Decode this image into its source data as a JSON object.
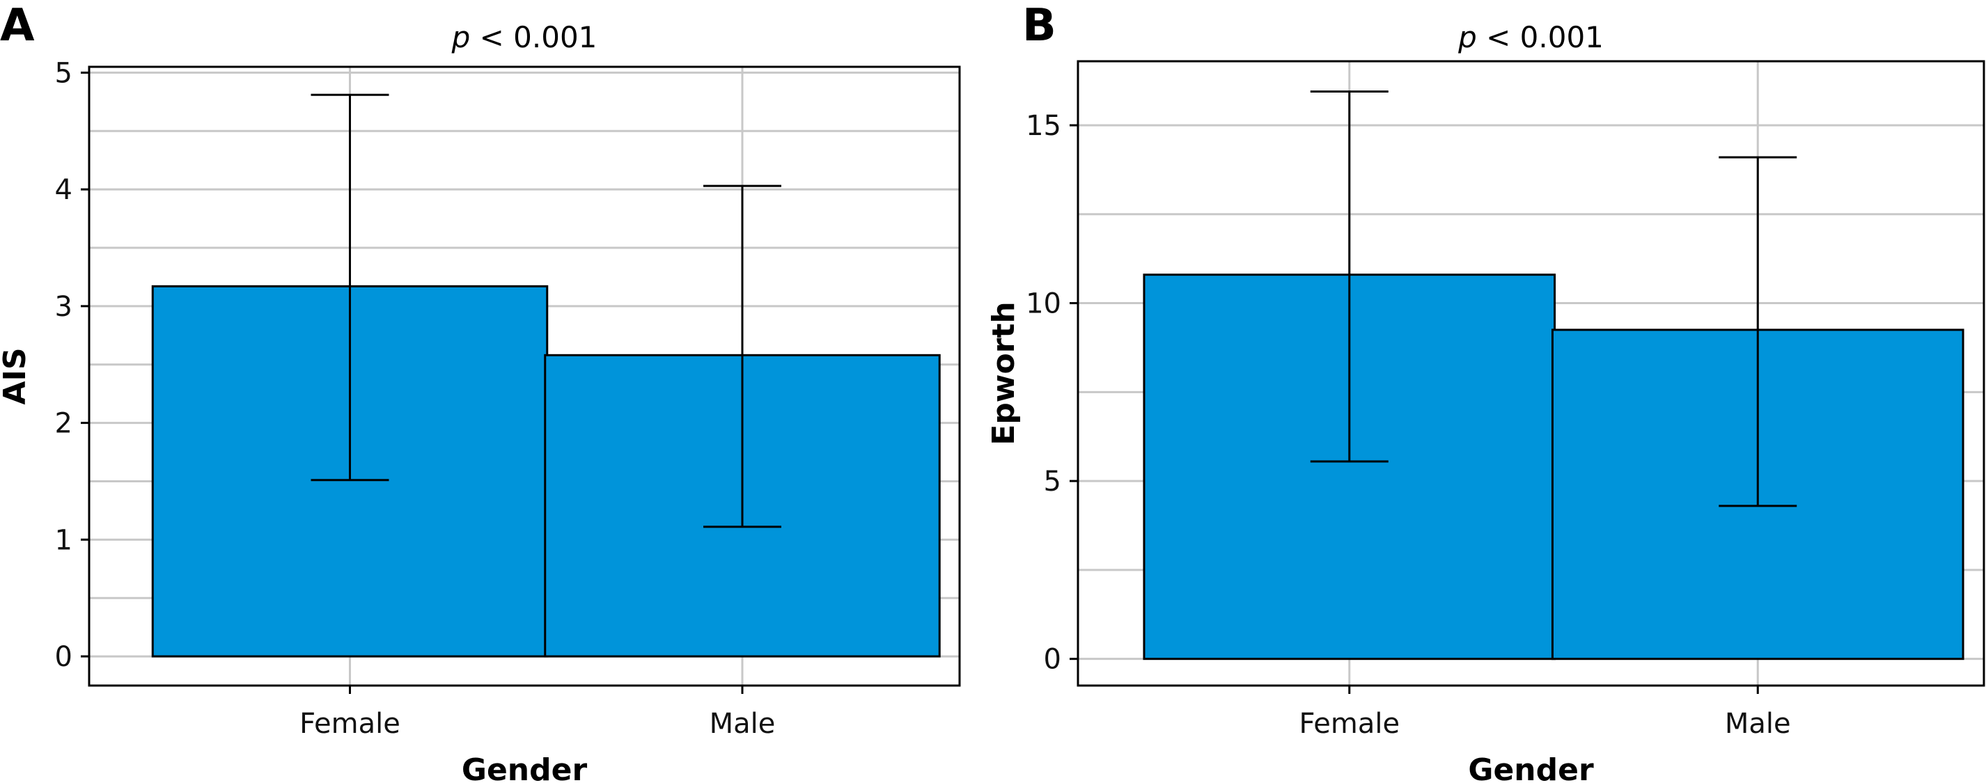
{
  "colors": {
    "bar": "#0094da",
    "grid": "#c8c8c8",
    "frame": "#000000"
  },
  "chart_data": [
    {
      "type": "bar",
      "panel_label": "A",
      "title_prefix": "p",
      "title_suffix": "< 0.001",
      "xlabel": "Gender",
      "ylabel": "AIS",
      "categories": [
        "Female",
        "Male"
      ],
      "values": [
        3.17,
        2.58
      ],
      "error_low": [
        1.51,
        1.11
      ],
      "error_high": [
        4.81,
        4.03
      ],
      "ylim": [
        -0.25,
        5.05
      ],
      "yticks": [
        0,
        1,
        2,
        3,
        4,
        5
      ],
      "minor_grid_step": 0.5,
      "grid": true,
      "legend": false
    },
    {
      "type": "bar",
      "panel_label": "B",
      "title_prefix": "p",
      "title_suffix": "< 0.001",
      "xlabel": "Gender",
      "ylabel": "Epworth",
      "categories": [
        "Female",
        "Male"
      ],
      "values": [
        10.8,
        9.25
      ],
      "error_low": [
        5.55,
        4.3
      ],
      "error_high": [
        15.95,
        14.1
      ],
      "ylim": [
        -0.75,
        16.8
      ],
      "yticks": [
        0,
        5,
        10,
        15
      ],
      "minor_grid_step": 2.5,
      "grid": true,
      "legend": false
    }
  ]
}
